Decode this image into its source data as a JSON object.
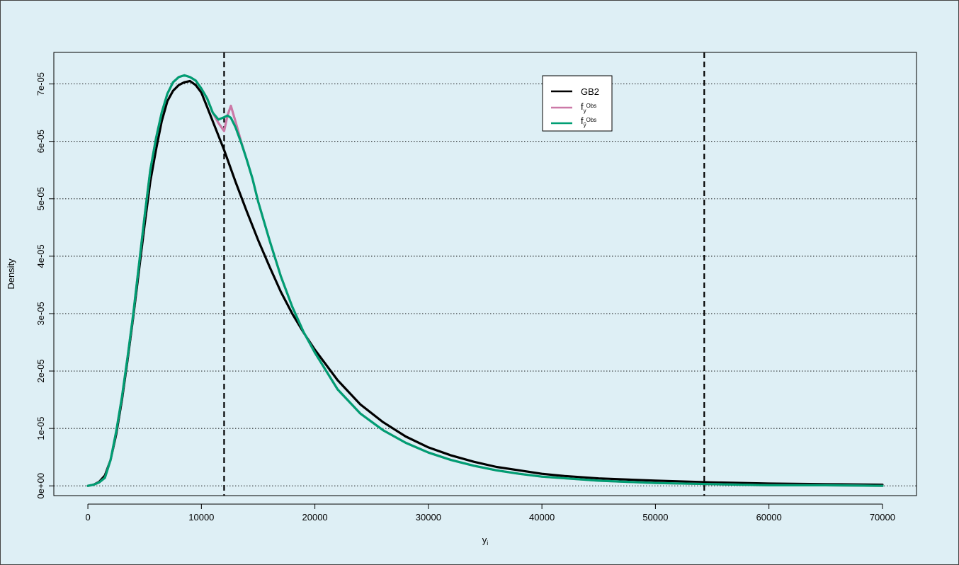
{
  "chart_data": {
    "type": "line",
    "title": "",
    "xlabel": "y",
    "xlabel_sub": "i",
    "ylabel": "Density",
    "xlim": [
      -3000,
      73000
    ],
    "ylim": [
      -1.7e-06,
      7.55e-05
    ],
    "x_ticks": [
      0,
      10000,
      20000,
      30000,
      40000,
      50000,
      60000,
      70000
    ],
    "x_tick_labels": [
      "0",
      "10000",
      "20000",
      "30000",
      "40000",
      "50000",
      "60000",
      "70000"
    ],
    "y_ticks": [
      0,
      1e-05,
      2e-05,
      3e-05,
      4e-05,
      5e-05,
      6e-05,
      7e-05
    ],
    "y_tick_labels": [
      "0e+00",
      "1e-05",
      "2e-05",
      "3e-05",
      "4e-05",
      "5e-05",
      "6e-05",
      "7e-05"
    ],
    "grid": "horizontal dotted",
    "vlines": [
      12000,
      54300
    ],
    "legend": {
      "placement": "top-right",
      "entries": [
        {
          "label": "GB2",
          "color": "#000000"
        },
        {
          "label": "f",
          "sub": "y",
          "sup": "Obs",
          "color": "#cc79a7"
        },
        {
          "label": "f",
          "sub": "ỹ",
          "sup": "Obs",
          "color": "#009e73"
        }
      ]
    },
    "series": [
      {
        "name": "GB2",
        "color": "#000000",
        "x": [
          0,
          500,
          1000,
          1500,
          2000,
          2500,
          3000,
          3500,
          4000,
          4500,
          5000,
          5500,
          6000,
          6500,
          7000,
          7500,
          8000,
          8500,
          9000,
          9500,
          10000,
          10500,
          11000,
          11500,
          12000,
          13000,
          14000,
          15000,
          16000,
          17000,
          18000,
          19000,
          20000,
          22000,
          24000,
          26000,
          28000,
          30000,
          32000,
          34000,
          36000,
          38000,
          40000,
          42000,
          45000,
          50000,
          55000,
          60000,
          65000,
          70000
        ],
        "y": [
          0,
          2e-07,
          7e-07,
          1.8e-06,
          4.5e-06,
          9e-06,
          1.5e-05,
          2.2e-05,
          2.95e-05,
          3.75e-05,
          4.55e-05,
          5.3e-05,
          5.85e-05,
          6.35e-05,
          6.7e-05,
          6.88e-05,
          6.98e-05,
          7.03e-05,
          7.05e-05,
          6.98e-05,
          6.85e-05,
          6.6e-05,
          6.35e-05,
          6.1e-05,
          5.85e-05,
          5.3e-05,
          4.78e-05,
          4.28e-05,
          3.82e-05,
          3.38e-05,
          3e-05,
          2.67e-05,
          2.37e-05,
          1.84e-05,
          1.42e-05,
          1.11e-05,
          8.6e-06,
          6.7e-06,
          5.3e-06,
          4.2e-06,
          3.3e-06,
          2.7e-06,
          2.1e-06,
          1.7e-06,
          1.3e-06,
          9e-07,
          6e-07,
          4e-07,
          3e-07,
          2e-07
        ]
      },
      {
        "name": "f_y^Obs",
        "color": "#cc79a7",
        "x": [
          0,
          500,
          1000,
          1500,
          2000,
          2500,
          3000,
          3500,
          4000,
          4500,
          5000,
          5500,
          6000,
          6500,
          7000,
          7500,
          8000,
          8500,
          9000,
          9500,
          10000,
          10500,
          11000,
          11500,
          12000,
          12300,
          12600,
          13000,
          13500,
          14000,
          14500,
          15000,
          16000,
          17000,
          18000,
          19000,
          20000,
          22000,
          24000,
          26000,
          28000,
          30000,
          32000,
          34000,
          36000,
          38000,
          40000,
          45000,
          50000,
          55000,
          60000,
          65000,
          70000
        ],
        "y": [
          0,
          2e-07,
          6e-07,
          1.4e-06,
          4.5e-06,
          9.5e-06,
          1.55e-05,
          2.25e-05,
          3e-05,
          3.85e-05,
          4.7e-05,
          5.5e-05,
          6.05e-05,
          6.5e-05,
          6.83e-05,
          7.03e-05,
          7.12e-05,
          7.15e-05,
          7.12e-05,
          7.06e-05,
          6.92e-05,
          6.75e-05,
          6.5e-05,
          6.32e-05,
          6.18e-05,
          6.45e-05,
          6.62e-05,
          6.35e-05,
          6e-05,
          5.68e-05,
          5.35e-05,
          4.95e-05,
          4.28e-05,
          3.65e-05,
          3.12e-05,
          2.68e-05,
          2.32e-05,
          1.68e-05,
          1.26e-05,
          9.7e-06,
          7.5e-06,
          5.8e-06,
          4.5e-06,
          3.5e-06,
          2.7e-06,
          2.1e-06,
          1.6e-06,
          9e-07,
          5e-07,
          3e-07,
          1e-07,
          1e-07,
          0
        ]
      },
      {
        "name": "f_ỹ^Obs",
        "color": "#009e73",
        "x": [
          0,
          500,
          1000,
          1500,
          2000,
          2500,
          3000,
          3500,
          4000,
          4500,
          5000,
          5500,
          6000,
          6500,
          7000,
          7500,
          8000,
          8500,
          9000,
          9500,
          10000,
          10500,
          11000,
          11500,
          12000,
          12300,
          12600,
          13000,
          13500,
          14000,
          14500,
          15000,
          16000,
          17000,
          18000,
          19000,
          20000,
          22000,
          24000,
          26000,
          28000,
          30000,
          32000,
          34000,
          36000,
          38000,
          40000,
          45000,
          50000,
          55000,
          60000,
          65000,
          70000
        ],
        "y": [
          0,
          2e-07,
          6e-07,
          1.4e-06,
          4.5e-06,
          9.5e-06,
          1.55e-05,
          2.25e-05,
          3e-05,
          3.85e-05,
          4.7e-05,
          5.5e-05,
          6.05e-05,
          6.5e-05,
          6.83e-05,
          7.03e-05,
          7.12e-05,
          7.15e-05,
          7.12e-05,
          7.06e-05,
          6.92e-05,
          6.75e-05,
          6.5e-05,
          6.38e-05,
          6.42e-05,
          6.45e-05,
          6.41e-05,
          6.25e-05,
          5.98e-05,
          5.68e-05,
          5.35e-05,
          4.95e-05,
          4.28e-05,
          3.65e-05,
          3.12e-05,
          2.68e-05,
          2.32e-05,
          1.68e-05,
          1.26e-05,
          9.7e-06,
          7.5e-06,
          5.8e-06,
          4.5e-06,
          3.5e-06,
          2.7e-06,
          2.1e-06,
          1.6e-06,
          9e-07,
          5e-07,
          3e-07,
          1e-07,
          1e-07,
          0
        ]
      }
    ]
  }
}
